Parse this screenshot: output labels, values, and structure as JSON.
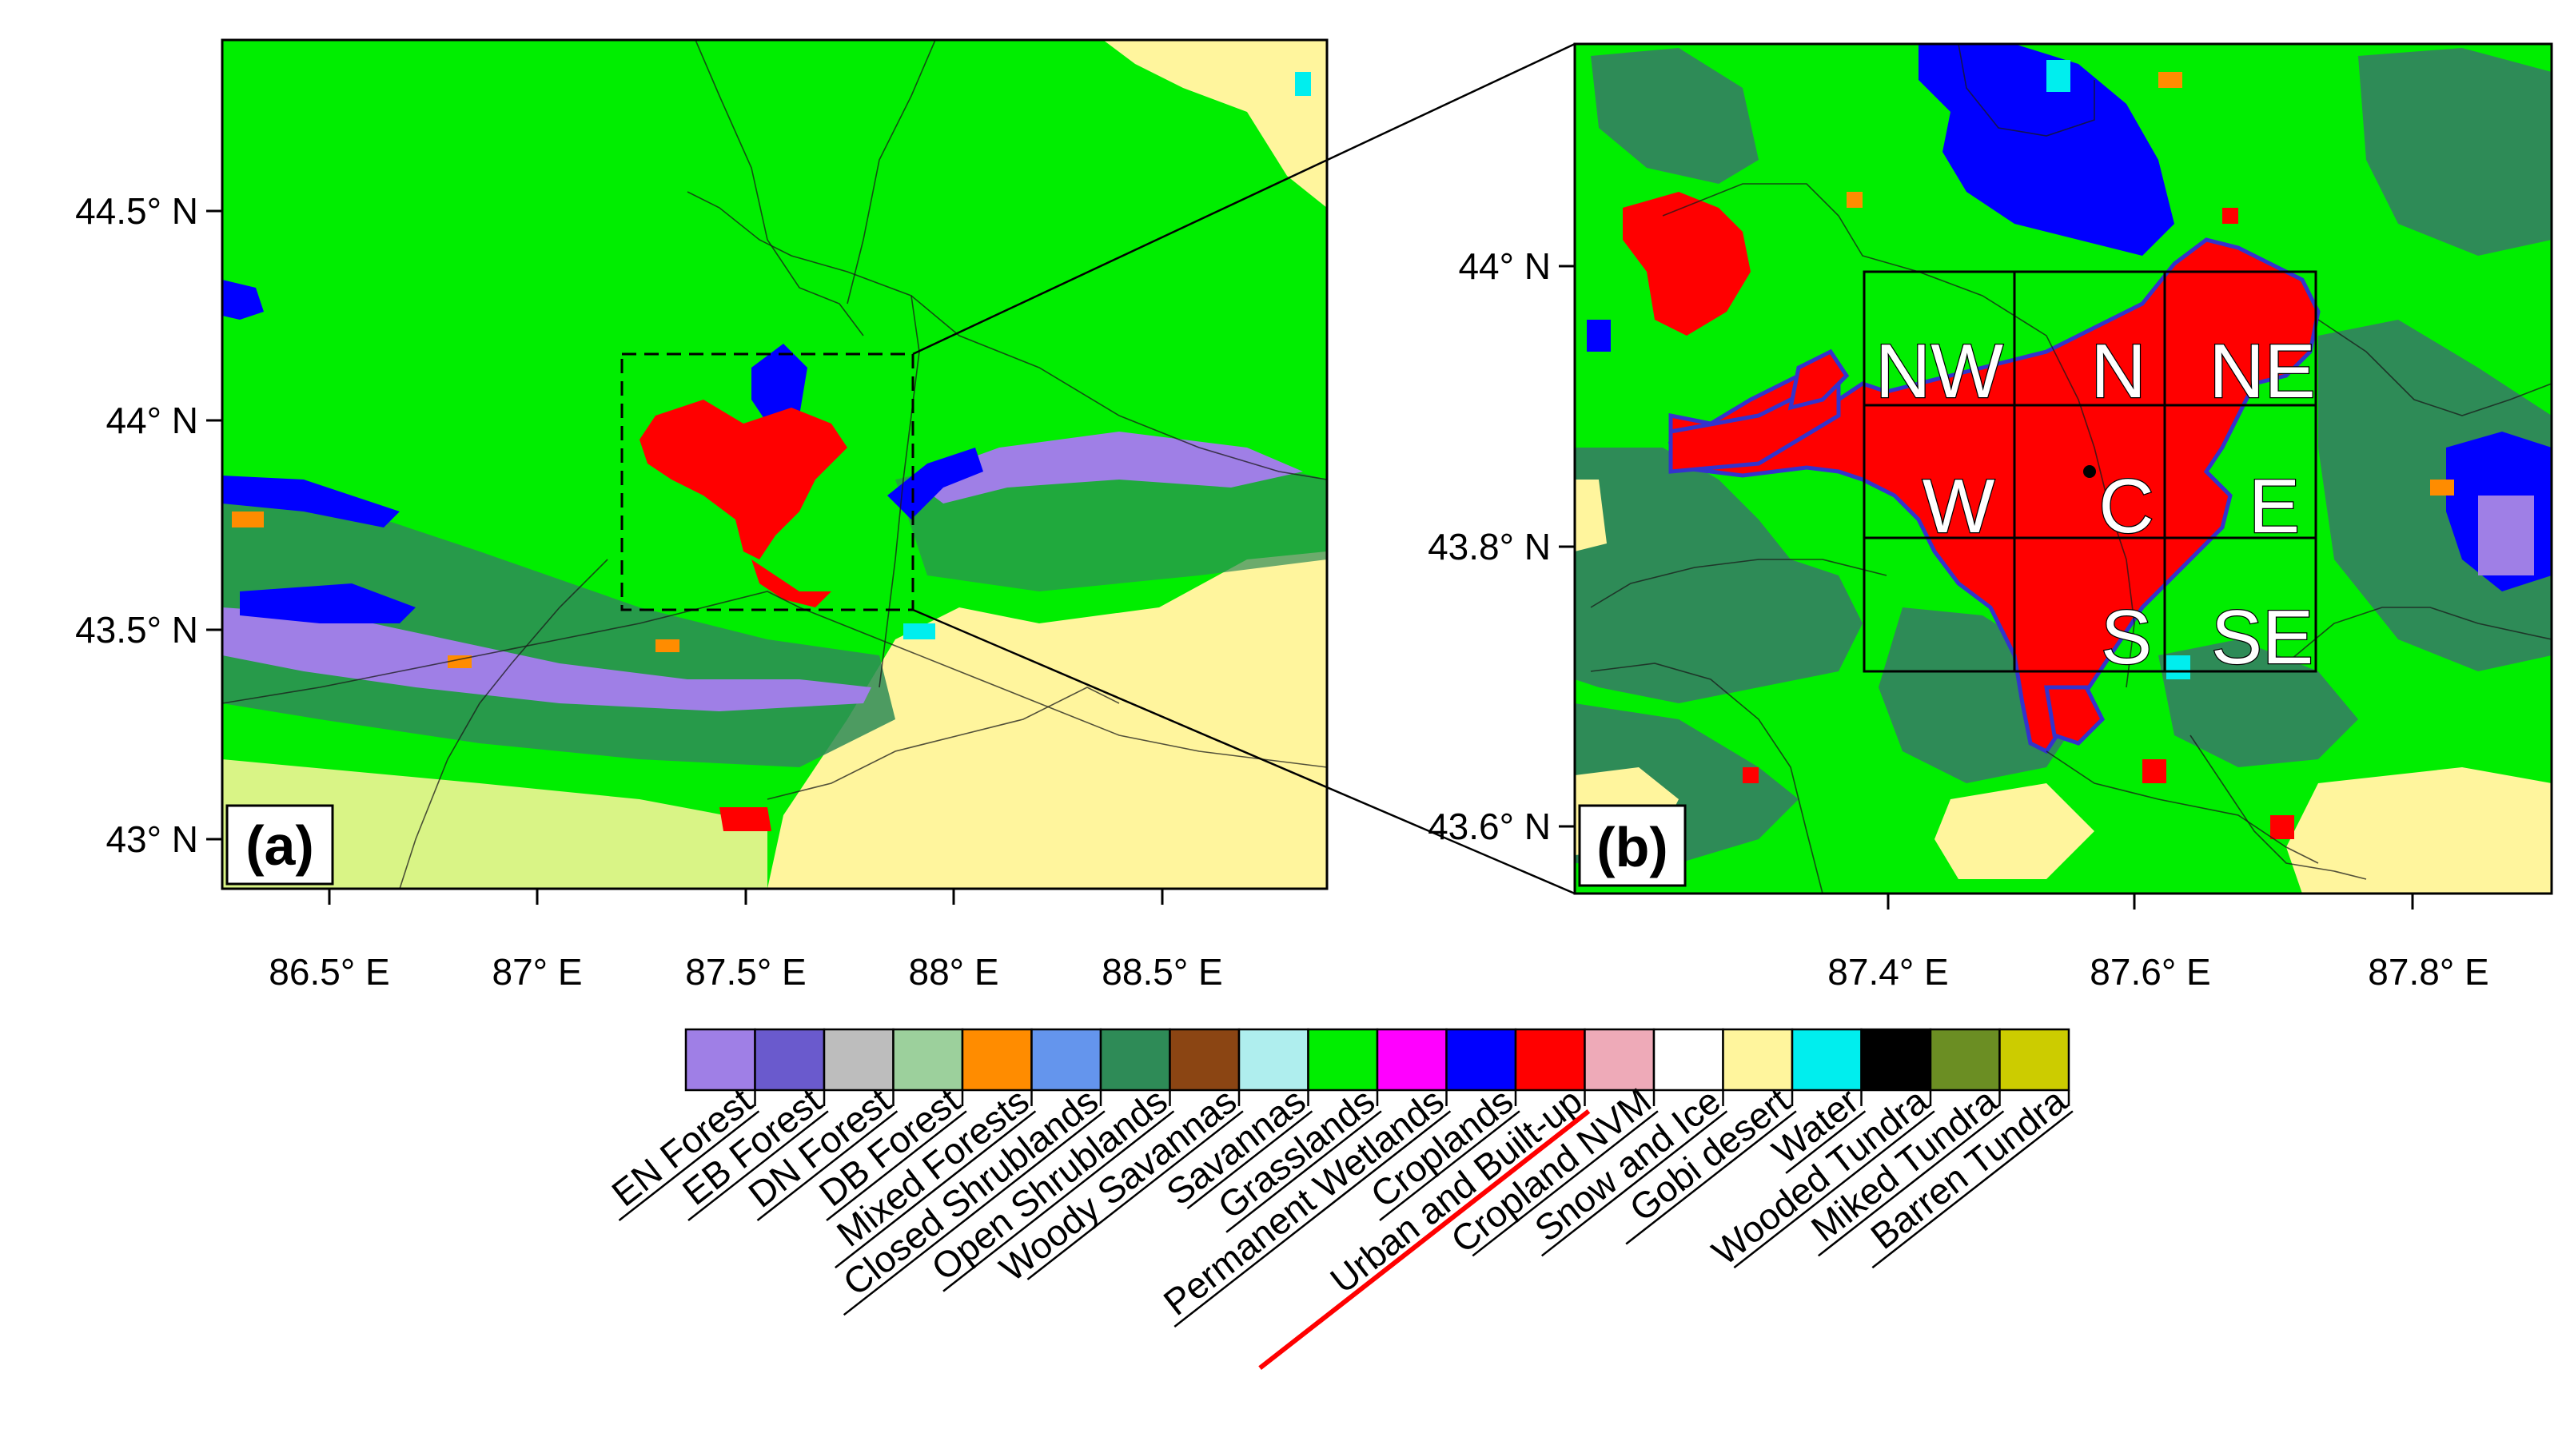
{
  "panels": {
    "a": {
      "label": "(a)",
      "lon_ticks": [
        "86.5° E",
        "87° E",
        "87.5° E",
        "88° E",
        "88.5° E"
      ],
      "lat_ticks": [
        "44.5° N",
        "44° N",
        "43.5° N",
        "43° N"
      ],
      "lon_range": [
        86.25,
        88.9
      ],
      "lat_range": [
        42.87,
        44.9
      ]
    },
    "b": {
      "label": "(b)",
      "lon_ticks": [
        "87.4° E",
        "87.6° E",
        "87.8° E"
      ],
      "lat_ticks": [
        "44° N",
        "43.8° N",
        "43.6° N"
      ],
      "lon_range": [
        87.2,
        87.9
      ],
      "lat_range": [
        43.55,
        44.16
      ],
      "sectors": [
        [
          "NW",
          "N",
          "NE"
        ],
        [
          "W",
          "C",
          "E"
        ],
        [
          "",
          "S",
          "SE"
        ]
      ]
    }
  },
  "legend": {
    "entries": [
      {
        "label": "EN Forest",
        "color": "#9f7fe6"
      },
      {
        "label": "EB Forest",
        "color": "#6a5acd"
      },
      {
        "label": "DN Forest",
        "color": "#bdbdbd"
      },
      {
        "label": "DB Forest",
        "color": "#9cd09c"
      },
      {
        "label": "Mixed Forests",
        "color": "#ff8c00"
      },
      {
        "label": "Closed Shrublands",
        "color": "#6495ed"
      },
      {
        "label": "Open Shrublands",
        "color": "#2e8b57"
      },
      {
        "label": "Woody Savannas",
        "color": "#8b4513"
      },
      {
        "label": "Savannas",
        "color": "#afeeee"
      },
      {
        "label": "Grasslands",
        "color": "#00ee00"
      },
      {
        "label": "Permanent Wetlands",
        "color": "#ff00ff"
      },
      {
        "label": "Croplands",
        "color": "#0000ff"
      },
      {
        "label": "Urban and Built-up",
        "color": "#ff0000"
      },
      {
        "label": "Cropland NVM",
        "color": "#eeaab8"
      },
      {
        "label": "Snow and Ice",
        "color": "#ffffff"
      },
      {
        "label": "Gobi desert",
        "color": "#fff59d"
      },
      {
        "label": "Water",
        "color": "#00eeee"
      },
      {
        "label": "Wooded Tundra",
        "color": "#000000"
      },
      {
        "label": "Miked Tundra",
        "color": "#6b8e23"
      },
      {
        "label": "Barren Tundra",
        "color": "#cccc00"
      }
    ],
    "highlight_index": 12,
    "highlight_color": "#ff0000"
  }
}
